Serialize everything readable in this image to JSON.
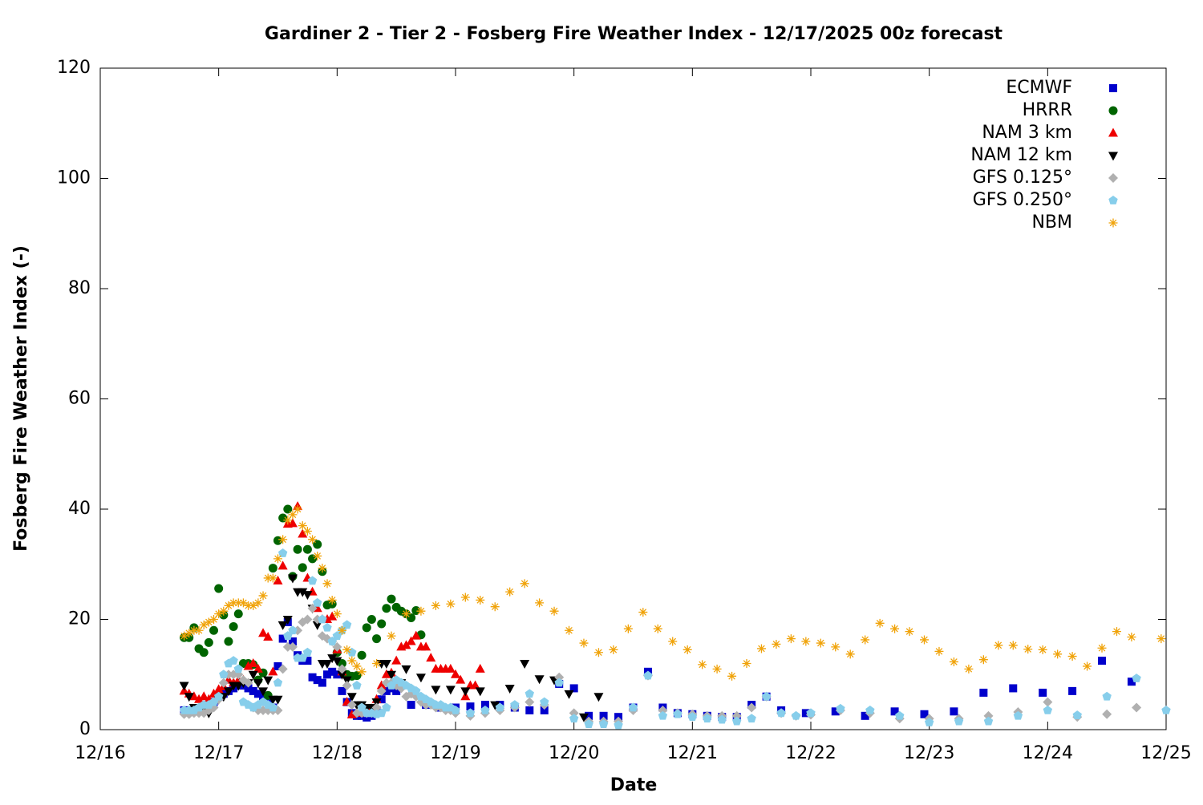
{
  "chart_data": {
    "type": "scatter",
    "title": "Gardiner 2 - Tier 2 - Fosberg Fire Weather Index - 12/17/2025 00z forecast",
    "xlabel": "Date",
    "ylabel": "Fosberg Fire Weather Index (-)",
    "xlim": [
      0,
      216
    ],
    "ylim": [
      0,
      120
    ],
    "xticks": [
      {
        "value": 0,
        "label": "12/16"
      },
      {
        "value": 24,
        "label": "12/17"
      },
      {
        "value": 48,
        "label": "12/18"
      },
      {
        "value": 72,
        "label": "12/19"
      },
      {
        "value": 96,
        "label": "12/20"
      },
      {
        "value": 120,
        "label": "12/21"
      },
      {
        "value": 144,
        "label": "12/22"
      },
      {
        "value": 168,
        "label": "12/23"
      },
      {
        "value": 192,
        "label": "12/24"
      },
      {
        "value": 216,
        "label": "12/25"
      }
    ],
    "yticks": [
      0,
      20,
      40,
      60,
      80,
      100,
      120
    ],
    "grid": false,
    "legend": "top right",
    "series": [
      {
        "name": "ECMWF",
        "color": "#0000cc",
        "marker": "square",
        "x": [
          17,
          18,
          19,
          20,
          21,
          22,
          23,
          24,
          25,
          26,
          27,
          28,
          29,
          30,
          31,
          32,
          33,
          34,
          35,
          36,
          37,
          38,
          39,
          40,
          41,
          42,
          43,
          44,
          45,
          46,
          47,
          48,
          49,
          50,
          51,
          52,
          53,
          54,
          55,
          56,
          57,
          58,
          59,
          60,
          63,
          66,
          69,
          72,
          75,
          78,
          81,
          84,
          87,
          90,
          93,
          96,
          99,
          102,
          105,
          108,
          111,
          114,
          117,
          120,
          123,
          126,
          129,
          132,
          135,
          138,
          143,
          149,
          155,
          161,
          167,
          173,
          179,
          185,
          191,
          197,
          203,
          209
        ],
        "values": [
          3.5,
          3.5,
          3.5,
          3.5,
          4,
          4.5,
          5,
          6,
          6.5,
          7,
          7.5,
          8,
          8,
          7.5,
          7,
          6.5,
          6,
          5,
          4,
          11.5,
          16.5,
          19.5,
          16,
          13.5,
          12.5,
          12.5,
          9.5,
          9,
          8.5,
          10,
          10.5,
          10,
          7,
          5,
          3,
          2.5,
          2.5,
          2.2,
          2.5,
          3.5,
          5.5,
          7,
          7.5,
          7,
          4.5,
          4.5,
          4,
          4,
          4.2,
          4.5,
          4.5,
          4,
          3.5,
          3.5,
          8.3,
          7.5,
          2.5,
          2.5,
          2.3,
          4,
          10.5,
          4,
          3,
          2.8,
          2.5,
          2.3,
          2.3,
          4.5,
          6,
          3.5,
          3,
          3.3,
          2.5,
          3.3,
          2.8,
          3.3,
          6.7,
          7.5,
          6.7,
          7,
          12.5,
          8.7
        ]
      },
      {
        "name": "HRRR",
        "color": "#006400",
        "marker": "circle",
        "x": [
          17,
          18,
          19,
          20,
          21,
          22,
          23,
          24,
          25,
          26,
          27,
          28,
          29,
          30,
          31,
          32,
          33,
          34,
          35,
          36,
          37,
          38,
          39,
          40,
          41,
          42,
          43,
          44,
          45,
          46,
          47,
          48,
          49,
          50,
          51,
          52,
          53,
          54,
          55,
          56,
          57,
          58,
          59,
          60,
          61,
          62,
          63,
          64,
          65
        ],
        "values": [
          16.7,
          16.7,
          18.5,
          14.7,
          14,
          15.8,
          18,
          25.6,
          20.8,
          16,
          18.7,
          21,
          12,
          12,
          11.8,
          9,
          10.3,
          6.2,
          29.3,
          34.3,
          38.4,
          40,
          27.8,
          32.7,
          29.4,
          32.7,
          31,
          33.6,
          28.7,
          22.6,
          22.8,
          14,
          12,
          10,
          9.7,
          9.8,
          13.5,
          18.5,
          20,
          16.5,
          19.2,
          22,
          23.7,
          22.2,
          21.5,
          21,
          20.3,
          21.6,
          17.2
        ]
      },
      {
        "name": "NAM 3 km",
        "color": "#ee0000",
        "marker": "triangle-up",
        "x": [
          17,
          18,
          19,
          20,
          21,
          22,
          23,
          24,
          25,
          26,
          27,
          28,
          29,
          30,
          31,
          32,
          33,
          34,
          35,
          36,
          37,
          38,
          39,
          40,
          41,
          42,
          43,
          44,
          45,
          46,
          47,
          48,
          49,
          50,
          51,
          52,
          53,
          54,
          55,
          56,
          57,
          58,
          59,
          60,
          61,
          62,
          63,
          64,
          65,
          66,
          67,
          68,
          69,
          70,
          71,
          72,
          73,
          74,
          75,
          76,
          77
        ],
        "values": [
          7,
          6.5,
          6,
          5.5,
          6,
          5.5,
          6.5,
          7.3,
          7.8,
          9,
          8.5,
          9,
          9,
          11.5,
          12,
          11,
          17.5,
          16.8,
          10.5,
          27,
          29.7,
          37.3,
          37.4,
          40.5,
          35.5,
          27.5,
          25,
          22,
          20,
          20,
          20.5,
          14.5,
          10.5,
          5,
          2.7,
          3,
          3,
          3.3,
          3.8,
          5.5,
          8,
          10,
          10.3,
          12.5,
          15,
          15.3,
          16,
          17,
          15,
          15,
          13,
          11,
          11,
          11,
          11,
          10,
          9,
          6,
          8,
          8,
          11
        ]
      },
      {
        "name": "NAM 12 km",
        "color": "#000000",
        "marker": "triangle-down",
        "x": [
          17,
          18,
          19,
          20,
          21,
          22,
          23,
          24,
          25,
          26,
          27,
          28,
          29,
          30,
          31,
          32,
          33,
          34,
          35,
          36,
          37,
          38,
          39,
          40,
          41,
          42,
          43,
          44,
          45,
          46,
          47,
          48,
          49,
          50,
          51,
          52,
          53,
          54,
          55,
          56,
          57,
          58,
          59,
          60,
          61,
          62,
          65,
          68,
          71,
          74,
          77,
          80,
          83,
          86,
          89,
          92,
          95,
          98,
          101
        ],
        "values": [
          8,
          6,
          4,
          3.5,
          3.5,
          3,
          4.5,
          5.5,
          6,
          7,
          8,
          8,
          8.5,
          8.5,
          10,
          8.5,
          7,
          9,
          5.5,
          5.5,
          19,
          20,
          27.5,
          25,
          25,
          24.5,
          22,
          19,
          12,
          12,
          13,
          12.5,
          10,
          9,
          6,
          4.5,
          4.5,
          4,
          4,
          5,
          12,
          12,
          10,
          8,
          8.5,
          11,
          9.5,
          7.3,
          7.3,
          7,
          7,
          4.5,
          7.5,
          12,
          9.2,
          9,
          6.5,
          2.3,
          6
        ]
      },
      {
        "name": "GFS 0.125°",
        "color": "#b0b0b0",
        "marker": "diamond",
        "x": [
          17,
          18,
          19,
          20,
          21,
          22,
          23,
          24,
          25,
          26,
          27,
          28,
          29,
          30,
          31,
          32,
          33,
          34,
          35,
          36,
          37,
          38,
          39,
          40,
          41,
          42,
          43,
          44,
          45,
          46,
          47,
          48,
          49,
          50,
          51,
          52,
          53,
          54,
          55,
          56,
          57,
          58,
          59,
          60,
          61,
          62,
          63,
          64,
          65,
          66,
          67,
          68,
          69,
          70,
          71,
          72,
          75,
          78,
          81,
          84,
          87,
          90,
          93,
          96,
          99,
          102,
          105,
          108,
          111,
          114,
          117,
          120,
          123,
          126,
          129,
          132,
          135,
          138,
          141,
          144,
          150,
          156,
          162,
          168,
          174,
          180,
          186,
          192,
          198,
          204,
          210
        ],
        "values": [
          2.8,
          2.8,
          3,
          3,
          3,
          3.5,
          4,
          5.5,
          8.5,
          10,
          10,
          10,
          9,
          8.5,
          4,
          3.5,
          3.5,
          3.5,
          3.5,
          3.5,
          11,
          15,
          15,
          18,
          19.5,
          20,
          22,
          20,
          17,
          16.5,
          16,
          15,
          11,
          8,
          4.5,
          3,
          3,
          3,
          3,
          4,
          7,
          8.5,
          8.5,
          8,
          7.5,
          6,
          6.5,
          6,
          5,
          4.5,
          4.5,
          4,
          4,
          3.5,
          3.5,
          3,
          2.5,
          3,
          3.5,
          4,
          5,
          4.5,
          9.5,
          3,
          1.5,
          1.5,
          1.5,
          3.5,
          9.8,
          3.5,
          3,
          2.8,
          2.5,
          2.5,
          2.5,
          4,
          6,
          3,
          2.5,
          2.7,
          3.5,
          3,
          2,
          2,
          2,
          2.5,
          3.2,
          5,
          2.3,
          2.8,
          4
        ]
      },
      {
        "name": "GFS 0.250°",
        "color": "#87ceeb",
        "marker": "pentagon",
        "x": [
          17,
          18,
          19,
          20,
          21,
          22,
          23,
          24,
          25,
          26,
          27,
          28,
          29,
          30,
          31,
          32,
          33,
          34,
          35,
          36,
          37,
          38,
          39,
          40,
          41,
          42,
          43,
          44,
          45,
          46,
          47,
          48,
          49,
          50,
          51,
          52,
          53,
          54,
          55,
          56,
          57,
          58,
          59,
          60,
          61,
          62,
          63,
          64,
          65,
          66,
          67,
          68,
          69,
          70,
          71,
          72,
          75,
          78,
          81,
          84,
          87,
          90,
          93,
          96,
          99,
          102,
          105,
          108,
          111,
          114,
          117,
          120,
          123,
          126,
          129,
          132,
          135,
          138,
          141,
          144,
          150,
          156,
          162,
          168,
          174,
          180,
          186,
          192,
          198,
          204,
          210,
          216
        ],
        "values": [
          3.5,
          3.5,
          3.5,
          4,
          4.5,
          4.5,
          5,
          6,
          10,
          12,
          12.5,
          11,
          5,
          4.5,
          4,
          4.5,
          5,
          4.5,
          4,
          8.5,
          32,
          17,
          18,
          13,
          13,
          14,
          27,
          23,
          20,
          18.5,
          16,
          17,
          18,
          19,
          14,
          8,
          4,
          3,
          3,
          2.8,
          3,
          4,
          8,
          9,
          8.5,
          8,
          7.5,
          7,
          6,
          5.5,
          5,
          4.5,
          4.5,
          4,
          4,
          3.5,
          3,
          3.5,
          4,
          4.5,
          6.5,
          5,
          8.5,
          2,
          1,
          1,
          0.8,
          4,
          9.8,
          2.5,
          2.8,
          2.3,
          2,
          1.8,
          1.5,
          2,
          6,
          3,
          2.5,
          3,
          3.8,
          3.5,
          2.5,
          1.3,
          1.5,
          1.5,
          2.5,
          3.5,
          2.6,
          6,
          9.3,
          3.5
        ]
      },
      {
        "name": "NBM",
        "color": "#f0a30a",
        "marker": "asterisk",
        "x": [
          17,
          18,
          19,
          20,
          21,
          22,
          23,
          24,
          25,
          26,
          27,
          28,
          29,
          30,
          31,
          32,
          33,
          34,
          35,
          36,
          37,
          38,
          39,
          40,
          41,
          42,
          43,
          44,
          45,
          46,
          47,
          48,
          49,
          50,
          51,
          52,
          53,
          56,
          59,
          62,
          65,
          68,
          71,
          74,
          77,
          80,
          83,
          86,
          89,
          92,
          95,
          98,
          101,
          104,
          107,
          110,
          113,
          116,
          119,
          122,
          125,
          128,
          131,
          134,
          137,
          140,
          143,
          146,
          149,
          152,
          155,
          158,
          161,
          164,
          167,
          170,
          173,
          176,
          179,
          182,
          185,
          188,
          191,
          194,
          197,
          200,
          203,
          206,
          209,
          215
        ],
        "values": [
          17,
          17.5,
          18,
          18,
          19,
          19.5,
          20,
          21,
          21.5,
          22.5,
          23,
          23,
          23,
          22.5,
          22.5,
          23,
          24.3,
          27.5,
          27.5,
          31,
          34.5,
          38,
          39,
          40,
          37,
          36,
          34.5,
          31.5,
          29.3,
          26.5,
          23.5,
          21,
          18,
          14.5,
          12.5,
          11.5,
          10.5,
          12,
          17,
          21,
          21.5,
          22.5,
          22.8,
          24,
          23.5,
          22.3,
          25,
          26.5,
          23,
          21.5,
          18,
          15.7,
          14,
          14.5,
          18.3,
          21.3,
          18.3,
          16,
          14.5,
          11.8,
          11,
          9.7,
          12,
          14.7,
          15.5,
          16.5,
          16,
          15.7,
          15,
          13.7,
          16.3,
          19.3,
          18.3,
          17.8,
          16.3,
          14.2,
          12.3,
          11,
          12.7,
          15.3,
          15.3,
          14.6,
          14.5,
          13.7,
          13.3,
          11.5,
          14.8,
          17.8,
          16.8,
          16.5
        ]
      }
    ]
  }
}
